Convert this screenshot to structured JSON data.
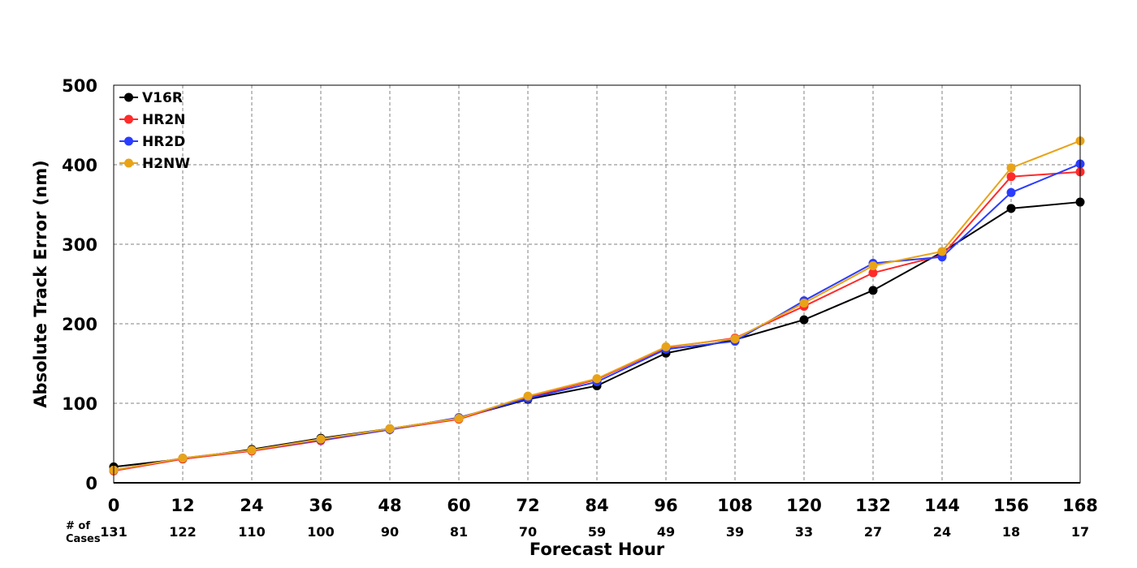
{
  "chart_data": {
    "type": "line",
    "xlabel": "Forecast Hour",
    "ylabel": "Absolute Track Error (nm)",
    "x": [
      0,
      12,
      24,
      36,
      48,
      60,
      72,
      84,
      96,
      108,
      120,
      132,
      144,
      156,
      168
    ],
    "xlim": [
      0,
      168
    ],
    "ylim": [
      0,
      500
    ],
    "yticks": [
      0,
      100,
      200,
      300,
      400,
      500
    ],
    "grid": true,
    "legend_position": "top-left",
    "cases_label": "# of Cases",
    "cases_label_lines": [
      "# of",
      "Cases"
    ],
    "cases": [
      131,
      122,
      110,
      100,
      90,
      81,
      70,
      59,
      49,
      39,
      33,
      27,
      24,
      18,
      17
    ],
    "series": [
      {
        "name": "V16R",
        "color": "#000000",
        "values": [
          20,
          30,
          42,
          56,
          68,
          81,
          105,
          122,
          163,
          180,
          205,
          242,
          290,
          345,
          353
        ]
      },
      {
        "name": "HR2N",
        "color": "#ff2a2a",
        "values": [
          15,
          30,
          40,
          53,
          67,
          80,
          107,
          130,
          170,
          182,
          222,
          264,
          286,
          385,
          391
        ]
      },
      {
        "name": "HR2D",
        "color": "#2a3cff",
        "values": [
          16,
          31,
          41,
          54,
          67,
          82,
          106,
          127,
          168,
          178,
          229,
          276,
          284,
          365,
          401
        ]
      },
      {
        "name": "H2NW",
        "color": "#e8a317",
        "values": [
          16,
          31,
          41,
          55,
          68,
          81,
          109,
          131,
          171,
          181,
          226,
          273,
          291,
          396,
          430
        ]
      }
    ]
  }
}
